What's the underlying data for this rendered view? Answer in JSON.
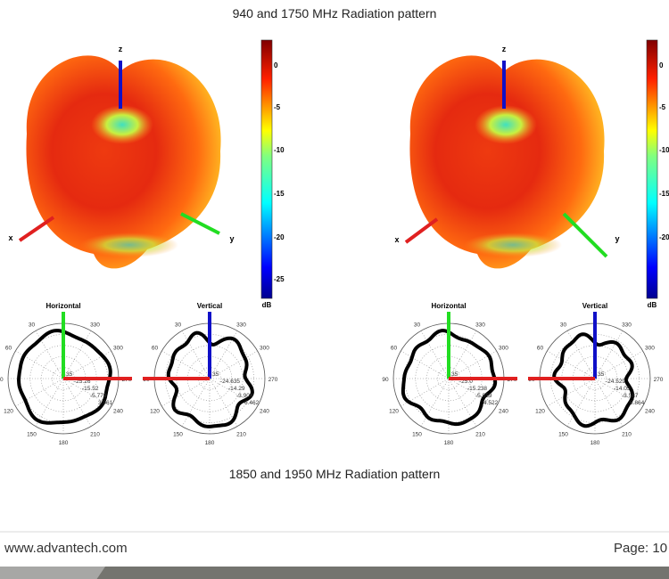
{
  "captions": {
    "top": "940 and 1750 MHz Radiation pattern",
    "bottom": "1850 and 1950 MHz Radiation pattern"
  },
  "figures": [
    {
      "axes_labels": {
        "x": "x",
        "y": "y",
        "z": "z"
      },
      "colorbar": {
        "unit": "dB",
        "ticks": [
          "0",
          "-5",
          "-10",
          "-15",
          "-20",
          "-25"
        ]
      },
      "polar": [
        {
          "title": "Horizontal",
          "rings": [
            "35",
            "-25.26",
            "-15.52",
            "-5.779",
            "3.961"
          ]
        },
        {
          "title": "Vertical",
          "rings": [
            "35",
            "-24.635",
            "-14.29",
            "-3.904",
            "6.462"
          ]
        }
      ]
    },
    {
      "axes_labels": {
        "x": "x",
        "y": "y",
        "z": "z"
      },
      "colorbar": {
        "unit": "dB",
        "ticks": [
          "0",
          "-5",
          "-10",
          "-15",
          "-20"
        ]
      },
      "polar": [
        {
          "title": "Horizontal",
          "rings": [
            "35",
            "-25.0",
            "-15.238",
            "-5.859",
            "4.522"
          ]
        },
        {
          "title": "Vertical",
          "rings": [
            "35",
            "-24.529",
            "-14.05",
            "-3.587",
            "6.864"
          ]
        }
      ]
    }
  ],
  "polar_angle_labels": [
    "30",
    "60",
    "90",
    "120",
    "150",
    "180",
    "210",
    "240",
    "270",
    "300",
    "330"
  ],
  "colors": {
    "x_axis": "#e02020",
    "y_axis": "#22dd22",
    "z_axis": "#1010c8",
    "pattern": "#000000"
  },
  "footer": {
    "site": "www.advantech.com",
    "page": "Page: 10"
  }
}
